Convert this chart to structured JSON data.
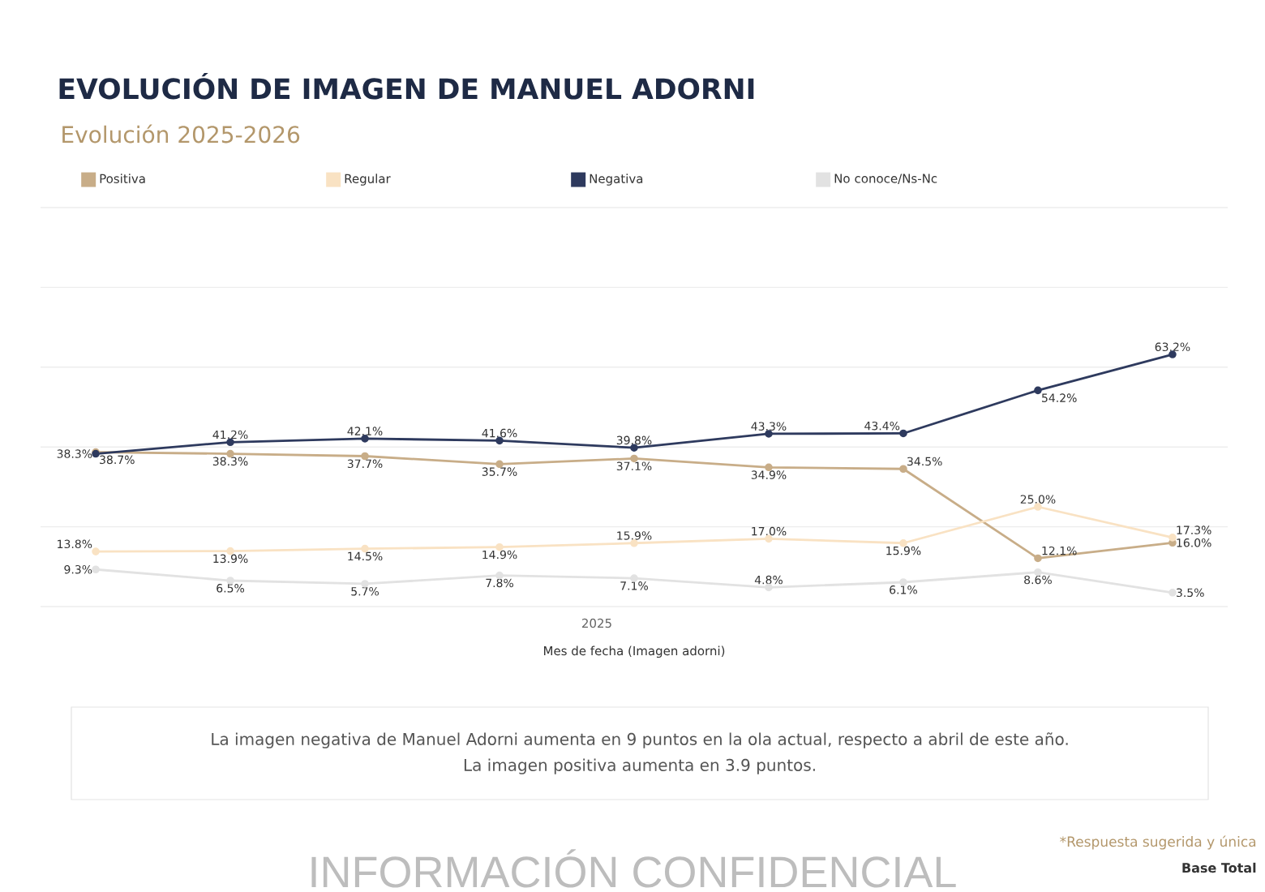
{
  "chart_data": {
    "type": "line",
    "title": "EVOLUCIÓN DE IMAGEN DE MANUEL ADORNI",
    "subtitle": "Evolución 2025-2026",
    "xlabel": "Mes de fecha (Imagen adorni)",
    "categories": [
      null,
      null,
      null,
      null,
      null,
      null,
      null,
      null,
      null
    ],
    "ylim": [
      0,
      100
    ],
    "yticks": [
      {
        "value": 0,
        "label": null
      },
      {
        "value": 20,
        "label": null
      },
      {
        "value": 40,
        "label": null
      },
      {
        "value": 60,
        "label": null
      },
      {
        "value": 80,
        "label": null
      },
      {
        "value": 100,
        "label": null
      }
    ],
    "grid": "y",
    "legend": "top",
    "marker": "circle",
    "line_style": "solid",
    "series": [
      {
        "name": "Positiva",
        "color": "#c8ad88",
        "values": [
          38.7,
          38.3,
          37.7,
          35.7,
          37.1,
          34.9,
          34.5,
          12.1,
          16.0
        ],
        "value_labels": [
          "38.7%",
          "38.3%",
          "37.7%",
          "35.7%",
          "37.1%",
          "34.9%",
          "34.5%",
          "12.1%",
          "16.0%"
        ]
      },
      {
        "name": "Regular",
        "color": "#f9e2c3",
        "values": [
          13.8,
          13.9,
          14.5,
          14.9,
          15.9,
          17.0,
          15.9,
          25.0,
          17.3
        ],
        "value_labels": [
          "13.8%",
          "13.9%",
          "14.5%",
          "14.9%",
          "15.9%",
          "17.0%",
          "15.9%",
          "25.0%",
          "17.3%"
        ]
      },
      {
        "name": "Negativa",
        "color": "#2e3a5e",
        "values": [
          38.3,
          41.2,
          42.1,
          41.6,
          39.8,
          43.3,
          43.4,
          54.2,
          63.2
        ],
        "value_labels": [
          "38.3%",
          "41.2%",
          "42.1%",
          "41.6%",
          "39.8%",
          "43.3%",
          "43.4%",
          "54.2%",
          "63.2%"
        ]
      },
      {
        "name": "No conoce/Ns-Nc",
        "color": "#e2e2e2",
        "values": [
          9.3,
          6.5,
          5.7,
          7.8,
          7.1,
          4.8,
          6.1,
          8.6,
          3.5
        ],
        "value_labels": [
          "9.3%",
          "6.5%",
          "5.7%",
          "7.8%",
          "7.1%",
          "4.8%",
          "6.1%",
          "8.6%",
          "3.5%"
        ]
      }
    ],
    "annotations": [
      "2025",
      "La imagen negativa de Manuel Adorni aumenta en 9 puntos en la ola actual, respecto a abril de este año.",
      "La imagen positiva aumenta en 3.9 puntos.",
      "*Respuesta sugerida y única",
      "Base Total",
      "INFORMACIÓN CONFIDENCIAL"
    ]
  }
}
